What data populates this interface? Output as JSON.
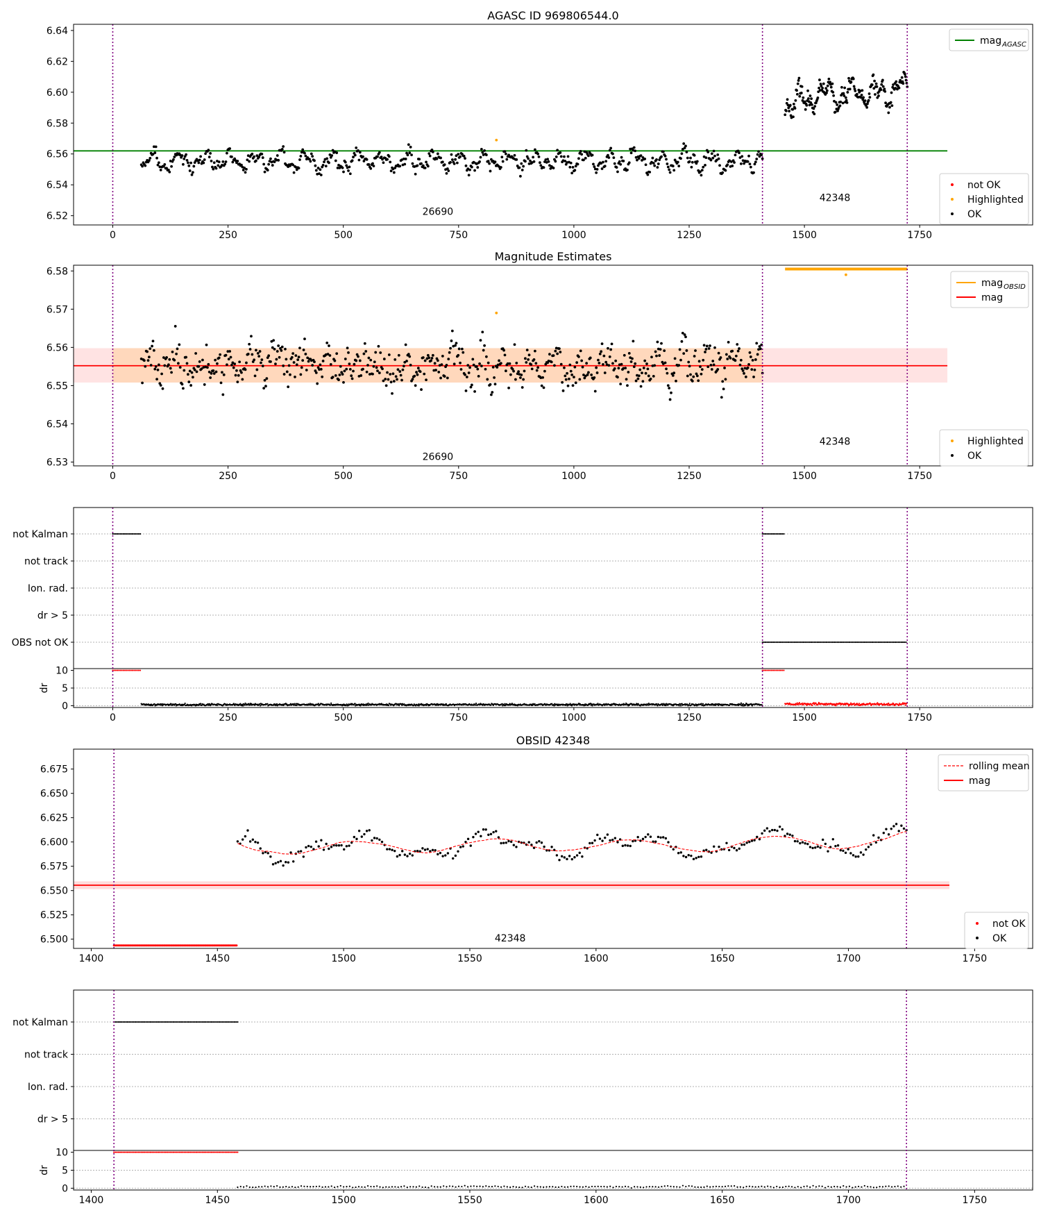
{
  "chart_data": [
    {
      "id": "p1",
      "type": "scatter",
      "title": "AGASC ID 969806544.0",
      "xlim": [
        -85,
        1995
      ],
      "ylim": [
        6.514,
        6.644
      ],
      "xticks": [
        0,
        250,
        500,
        750,
        1000,
        1250,
        1500,
        1750
      ],
      "yticks": [
        6.52,
        6.54,
        6.56,
        6.58,
        6.6,
        6.62,
        6.64
      ],
      "vlines": [
        0,
        1409,
        1723
      ],
      "obsids": [
        {
          "label": "26690",
          "x": 705,
          "y": 6.5205
        },
        {
          "label": "42348",
          "x": 1566,
          "y": 6.5295
        }
      ],
      "mag_agasc": {
        "name": "mag_AGASC",
        "value": 6.562,
        "x_range": [
          -85,
          1810
        ]
      },
      "segments": [
        {
          "x_start": 62,
          "x_end": 1409,
          "n": 640,
          "mean": 6.5555,
          "amp": 0.0045,
          "noise": 0.0035,
          "seed": 11
        },
        {
          "x_start": 1458,
          "x_end": 1723,
          "n": 210,
          "mean": 6.594,
          "amp": 0.006,
          "noise": 0.0045,
          "seed": 23,
          "trend": 0.008
        }
      ],
      "highlighted": [
        {
          "x": 832,
          "y": 6.569
        }
      ],
      "legend_top": [
        {
          "label": "mag",
          "sub": "AGASC",
          "color": "#008000"
        }
      ],
      "legend_bottom": [
        {
          "label": "not OK",
          "color": "#ff0000"
        },
        {
          "label": "Highlighted",
          "color": "#ffa500"
        },
        {
          "label": "OK",
          "color": "#000000"
        }
      ]
    },
    {
      "id": "p2",
      "type": "scatter",
      "title": "Magnitude Estimates",
      "xlim": [
        -85,
        1995
      ],
      "ylim": [
        6.529,
        6.5815
      ],
      "xticks": [
        0,
        250,
        500,
        750,
        1000,
        1250,
        1500,
        1750
      ],
      "yticks": [
        6.53,
        6.54,
        6.55,
        6.56,
        6.57,
        6.58
      ],
      "vlines": [
        0,
        1409,
        1723
      ],
      "obsids": [
        {
          "label": "26690",
          "x": 705,
          "y": 6.5305
        },
        {
          "label": "42348",
          "x": 1566,
          "y": 6.5345
        }
      ],
      "mag": {
        "name": "mag",
        "value": 6.5552,
        "band": [
          6.5508,
          6.5598
        ],
        "x_range": [
          -85,
          1810
        ]
      },
      "mag_obsid_band": {
        "x_start": 0,
        "x_end": 1409,
        "band": [
          6.5508,
          6.5598
        ]
      },
      "mag_obsid": {
        "name": "mag_OBSID",
        "value": 6.5805,
        "x_range": [
          1458,
          1723
        ]
      },
      "segments": [
        {
          "x_start": 62,
          "x_end": 1409,
          "n": 640,
          "mean": 6.5555,
          "amp": 0.0022,
          "noise": 0.0042,
          "seed": 37
        }
      ],
      "highlighted": [
        {
          "x": 832,
          "y": 6.569
        },
        {
          "x": 1590,
          "y": 6.579
        }
      ],
      "legend_top": [
        {
          "label": "mag",
          "sub": "OBSID",
          "color": "#ffa500"
        },
        {
          "label": "mag",
          "sub": "",
          "color": "#ff0000"
        }
      ],
      "legend_bottom": [
        {
          "label": "Highlighted",
          "color": "#ffa500"
        },
        {
          "label": "OK",
          "color": "#000000"
        }
      ]
    },
    {
      "id": "p3",
      "type": "scatter",
      "title": "",
      "xlim": [
        -85,
        1995
      ],
      "xticks": [
        0,
        250,
        500,
        750,
        1000,
        1250,
        1500,
        1750
      ],
      "vlines": [
        0,
        1409,
        1723
      ],
      "flag_labels": [
        "not Kalman",
        "not track",
        "Ion. rad.",
        "dr > 5",
        "OBS not OK"
      ],
      "flags": [
        {
          "flag": "not Kalman",
          "x_start": 0,
          "x_end": 62
        },
        {
          "flag": "not Kalman",
          "x_start": 1409,
          "x_end": 1458
        },
        {
          "flag": "OBS not OK",
          "x_start": 1409,
          "x_end": 1723
        }
      ],
      "dr": {
        "ylabel": "dr",
        "yticks": [
          0,
          5,
          10
        ],
        "ylim": [
          -0.5,
          10.5
        ],
        "capped": [
          {
            "x_start": 0,
            "x_end": 62
          },
          {
            "x_start": 1409,
            "x_end": 1458
          }
        ],
        "ok": {
          "x_start": 62,
          "x_end": 1409,
          "mean": 0.3,
          "noise": 0.25,
          "seed": 41
        },
        "not_ok": {
          "x_start": 1458,
          "x_end": 1723,
          "mean": 0.45,
          "noise": 0.3,
          "seed": 43
        }
      }
    },
    {
      "id": "p4",
      "type": "scatter",
      "title": "OBSID 42348",
      "xlim": [
        1393,
        1773
      ],
      "ylim": [
        6.4905,
        6.6955
      ],
      "xticks": [
        1400,
        1450,
        1500,
        1550,
        1600,
        1650,
        1700,
        1750
      ],
      "yticks": [
        6.5,
        6.525,
        6.55,
        6.575,
        6.6,
        6.625,
        6.65,
        6.675
      ],
      "vlines": [
        1409,
        1723
      ],
      "obsids": [
        {
          "label": "42348",
          "x": 1566,
          "y": 6.4975
        }
      ],
      "mag": {
        "name": "mag",
        "value": 6.5555,
        "band": [
          6.5515,
          6.5595
        ],
        "x_range": [
          1393,
          1740
        ]
      },
      "segments": [
        {
          "x_start": 1458,
          "x_end": 1723,
          "n": 265,
          "mean": 6.5935,
          "amp": 0.009,
          "noise": 0.005,
          "seed": 59,
          "trend": 0.006
        }
      ],
      "not_ok": {
        "x_start": 1409,
        "x_end": 1458,
        "value": 6.4935
      },
      "rolling_mean": {
        "name": "rolling mean",
        "color": "#ff0000"
      },
      "legend_top": [
        {
          "label": "rolling mean",
          "color": "#ff0000",
          "style": "dashed"
        },
        {
          "label": "mag",
          "color": "#ff0000",
          "style": "solid"
        }
      ],
      "legend_bottom": [
        {
          "label": "not OK",
          "color": "#ff0000"
        },
        {
          "label": "OK",
          "color": "#000000"
        }
      ]
    },
    {
      "id": "p5",
      "type": "scatter",
      "title": "",
      "xlim": [
        1393,
        1773
      ],
      "xticks": [
        1400,
        1450,
        1500,
        1550,
        1600,
        1650,
        1700,
        1750
      ],
      "vlines": [
        1409,
        1723
      ],
      "flag_labels": [
        "not Kalman",
        "not track",
        "Ion. rad.",
        "dr > 5"
      ],
      "flags": [
        {
          "flag": "not Kalman",
          "x_start": 1409,
          "x_end": 1458
        }
      ],
      "dr": {
        "ylabel": "dr",
        "yticks": [
          0,
          5,
          10
        ],
        "ylim": [
          -0.5,
          10.5
        ],
        "capped": [
          {
            "x_start": 1409,
            "x_end": 1458
          }
        ],
        "ok": {
          "x_start": 1458,
          "x_end": 1723,
          "mean": 0.4,
          "noise": 0.2,
          "seed": 67
        }
      }
    }
  ]
}
